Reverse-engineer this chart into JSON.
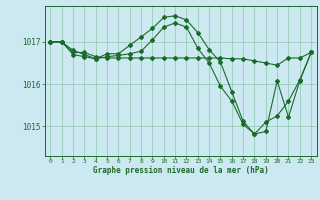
{
  "title": "Graphe pression niveau de la mer (hPa)",
  "background_color": "#cce8f0",
  "plot_bg_color": "#cce8f0",
  "grid_color": "#99ccbb",
  "line_color": "#1a6b2a",
  "marker_color": "#1a6b2a",
  "xlim": [
    -0.5,
    23.5
  ],
  "ylim": [
    1014.3,
    1017.85
  ],
  "yticks": [
    1015,
    1016,
    1017
  ],
  "xticks": [
    0,
    1,
    2,
    3,
    4,
    5,
    6,
    7,
    8,
    9,
    10,
    11,
    12,
    13,
    14,
    15,
    16,
    17,
    18,
    19,
    20,
    21,
    22,
    23
  ],
  "series": [
    {
      "x": [
        0,
        1,
        2,
        3,
        4,
        5,
        6,
        7,
        8,
        9,
        10,
        11,
        12,
        13,
        14,
        15,
        16,
        17,
        18,
        19,
        20,
        21,
        22,
        23
      ],
      "y": [
        1017.0,
        1017.0,
        1016.75,
        1016.75,
        1016.65,
        1016.62,
        1016.62,
        1016.62,
        1016.62,
        1016.62,
        1016.62,
        1016.62,
        1016.62,
        1016.62,
        1016.62,
        1016.62,
        1016.6,
        1016.6,
        1016.55,
        1016.5,
        1016.45,
        1016.62,
        1016.62,
        1016.75
      ]
    },
    {
      "x": [
        0,
        1,
        2,
        3,
        4,
        5,
        6,
        7,
        8,
        9,
        10,
        11,
        12,
        13,
        14,
        15,
        16,
        17,
        18,
        19,
        20,
        21,
        22,
        23
      ],
      "y": [
        1017.0,
        1017.0,
        1016.7,
        1016.65,
        1016.6,
        1016.65,
        1016.68,
        1016.72,
        1016.78,
        1017.05,
        1017.35,
        1017.45,
        1017.35,
        1016.85,
        1016.5,
        1015.95,
        1015.6,
        1015.05,
        1014.82,
        1015.1,
        1015.25,
        1015.6,
        1016.1,
        1016.75
      ]
    },
    {
      "x": [
        0,
        1,
        2,
        3,
        4,
        5,
        6,
        7,
        8,
        9,
        10,
        11,
        12,
        13,
        14,
        15,
        16,
        17,
        18,
        19,
        20,
        21,
        22,
        23
      ],
      "y": [
        1017.0,
        1017.0,
        1016.8,
        1016.7,
        1016.6,
        1016.72,
        1016.72,
        1016.92,
        1017.12,
        1017.32,
        1017.58,
        1017.62,
        1017.52,
        1017.22,
        1016.82,
        1016.52,
        1015.82,
        1015.12,
        1014.82,
        1014.88,
        1016.08,
        1015.22,
        1016.08,
        1016.75
      ]
    }
  ]
}
